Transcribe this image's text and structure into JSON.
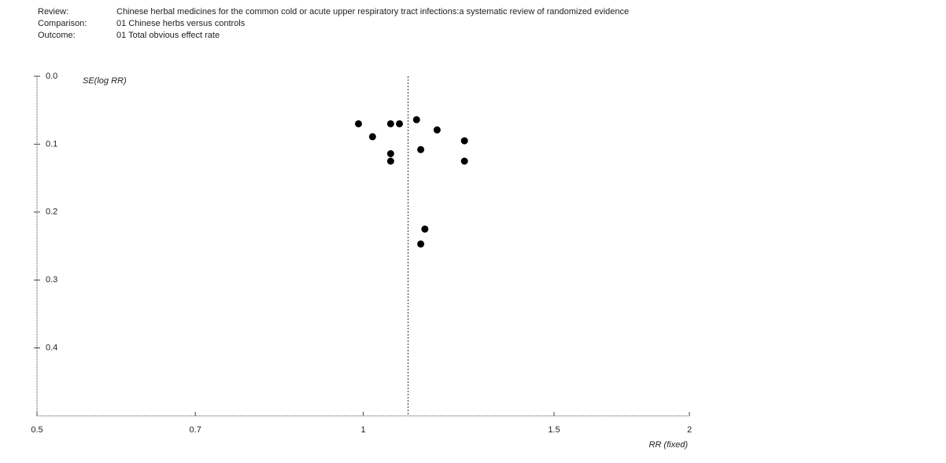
{
  "chart_data": {
    "type": "scatter",
    "header": [
      {
        "label": "Review:",
        "value": "Chinese herbal medicines for the common cold or acute upper respiratory  tract infections:a systematic review of randomized evidence"
      },
      {
        "label": "Comparison:",
        "value": "01 Chinese herbs versus controls"
      },
      {
        "label": "Outcome:",
        "value": "01 Total obvious effect rate"
      }
    ],
    "y_label": "SE(log RR)",
    "x_label": "RR (fixed)",
    "x_log": true,
    "y_reversed": true,
    "xlim": [
      0.5,
      2
    ],
    "xticks": [
      0.5,
      0.7,
      1,
      1.5,
      2
    ],
    "ylim": [
      0,
      0.5
    ],
    "yticks": [
      {
        "value": 0,
        "label": "0.0"
      },
      0.1,
      0.2,
      0.3,
      0.4
    ],
    "reference_line": 1.1,
    "color": "#000000",
    "x": [
      0.99,
      1.02,
      1.06,
      1.08,
      1.06,
      1.06,
      1.12,
      1.13,
      1.17,
      1.24,
      1.24,
      1.14,
      1.13
    ],
    "values": [
      0.07,
      0.089,
      0.07,
      0.07,
      0.114,
      0.125,
      0.064,
      0.108,
      0.079,
      0.095,
      0.125,
      0.225,
      0.247
    ]
  }
}
